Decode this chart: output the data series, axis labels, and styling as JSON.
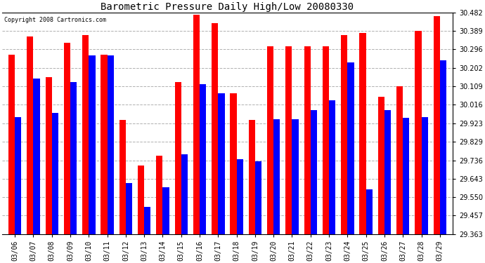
{
  "title": "Barometric Pressure Daily High/Low 20080330",
  "copyright": "Copyright 2008 Cartronics.com",
  "categories": [
    "03/06",
    "03/07",
    "03/08",
    "03/09",
    "03/10",
    "03/11",
    "03/12",
    "03/13",
    "03/14",
    "03/15",
    "03/16",
    "03/17",
    "03/18",
    "03/19",
    "03/20",
    "03/21",
    "03/22",
    "03/23",
    "03/24",
    "03/25",
    "03/26",
    "03/27",
    "03/28",
    "03/29"
  ],
  "highs": [
    30.27,
    30.36,
    30.155,
    30.33,
    30.37,
    30.27,
    29.94,
    29.71,
    29.76,
    30.13,
    30.47,
    30.43,
    30.075,
    29.94,
    30.31,
    30.31,
    30.31,
    30.31,
    30.37,
    30.38,
    30.055,
    30.11,
    30.39,
    30.465
  ],
  "lows": [
    29.955,
    30.15,
    29.975,
    30.13,
    30.265,
    30.265,
    29.62,
    29.5,
    29.6,
    29.765,
    30.12,
    30.075,
    29.74,
    29.73,
    29.945,
    29.945,
    29.99,
    30.04,
    30.23,
    29.59,
    29.99,
    29.95,
    29.955,
    30.24
  ],
  "high_color": "#ff0000",
  "low_color": "#0000ff",
  "bg_color": "#ffffff",
  "grid_color": "#b0b0b0",
  "ymin": 29.363,
  "ymax": 30.482,
  "yticks": [
    30.482,
    30.389,
    30.296,
    30.202,
    30.109,
    30.016,
    29.923,
    29.829,
    29.736,
    29.643,
    29.55,
    29.457,
    29.363
  ],
  "bar_width": 0.35,
  "title_fontsize": 10,
  "tick_fontsize": 7,
  "copyright_fontsize": 6
}
